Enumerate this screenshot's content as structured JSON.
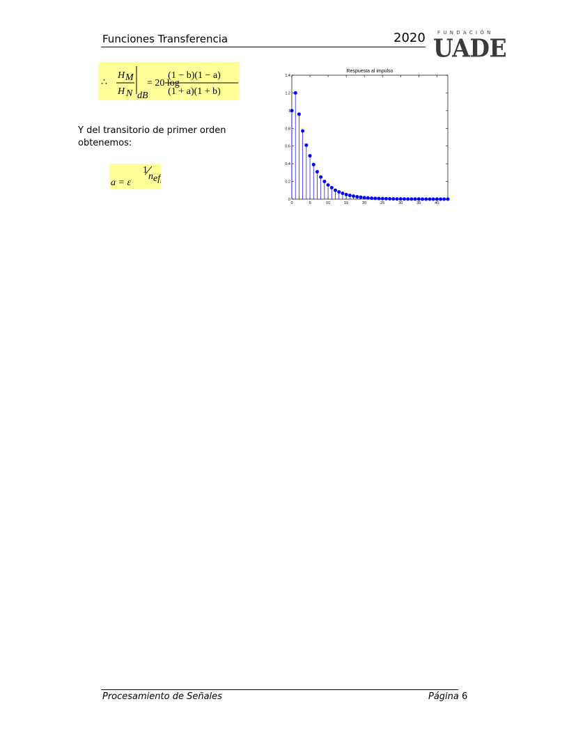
{
  "header": {
    "title": "Funciones Transferencia",
    "year": "2020"
  },
  "logo": {
    "top": "FUNDACIÓN",
    "main": "UADE"
  },
  "equation1": {
    "therefore": "∴",
    "num_h": "H",
    "num_sub": "M",
    "den_h": "H",
    "den_sub": "N",
    "eval_sub": "dB",
    "rhs": "= 20 log",
    "frac_num": "(1 − b)(1 − a)",
    "frac_den": "(1 + a)(1 + b)"
  },
  "paragraph": {
    "line1": "Y del transitorio de primer orden",
    "line2": "obtenemos:"
  },
  "equation2": {
    "lhs": "a = ε",
    "exp_num": "1",
    "exp_den": "n",
    "exp_den_sub": "eff"
  },
  "chart_data": {
    "type": "stem",
    "title": "Respuesta al impulso",
    "xlabel": "",
    "ylabel": "",
    "xlim": [
      0,
      43
    ],
    "ylim": [
      0,
      1.4
    ],
    "xticks": [
      0,
      5,
      10,
      15,
      20,
      25,
      30,
      35,
      40
    ],
    "yticks": [
      0,
      0.2,
      0.4,
      0.6,
      0.8,
      1,
      1.2,
      1.4
    ],
    "ytick_labels": [
      "0",
      "0.2",
      "0.4",
      "0.6",
      "0.8",
      "1",
      "1.2",
      "1.4"
    ],
    "x": [
      0,
      1,
      2,
      3,
      4,
      5,
      6,
      7,
      8,
      9,
      10,
      11,
      12,
      13,
      14,
      15,
      16,
      17,
      18,
      19,
      20,
      21,
      22,
      23,
      24,
      25,
      26,
      27,
      28,
      29,
      30,
      31,
      32,
      33,
      34,
      35,
      36,
      37,
      38,
      39,
      40,
      41,
      42,
      43
    ],
    "y": [
      1.0,
      1.2,
      0.96,
      0.77,
      0.61,
      0.49,
      0.39,
      0.31,
      0.25,
      0.2,
      0.16,
      0.13,
      0.1,
      0.082,
      0.066,
      0.052,
      0.042,
      0.034,
      0.027,
      0.022,
      0.017,
      0.014,
      0.011,
      0.009,
      0.007,
      0.006,
      0.005,
      0.004,
      0.003,
      0.002,
      0.002,
      0.002,
      0.001,
      0.001,
      0.001,
      0.001,
      0.0,
      0.0,
      0.0,
      0.0,
      0.0,
      0.0,
      0.0,
      0.0
    ],
    "marker_color": "#0000ff",
    "stem_color": "#0000ff",
    "grid": false
  },
  "footer": {
    "left": "Procesamiento de Señales",
    "right_label": "Página",
    "right_num": "6"
  }
}
